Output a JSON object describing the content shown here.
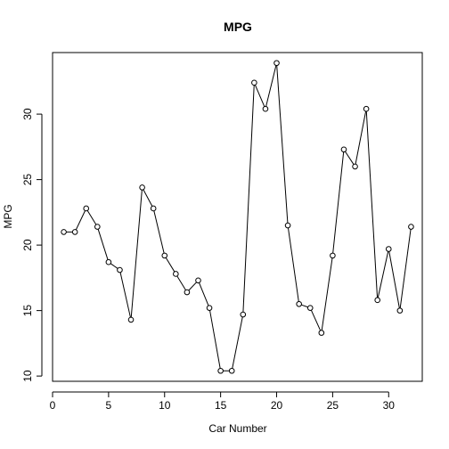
{
  "chart_data": {
    "type": "line",
    "title": "MPG",
    "xlabel": "Car Number",
    "ylabel": "MPG",
    "xlim": [
      0,
      33
    ],
    "ylim": [
      9.6,
      34.7
    ],
    "xticks": [
      0,
      5,
      10,
      15,
      20,
      25,
      30
    ],
    "yticks": [
      10,
      15,
      20,
      25,
      30
    ],
    "grid": false,
    "marker": "open-circle",
    "series": [
      {
        "name": "",
        "x": [
          1,
          2,
          3,
          4,
          5,
          6,
          7,
          8,
          9,
          10,
          11,
          12,
          13,
          14,
          15,
          16,
          17,
          18,
          19,
          20,
          21,
          22,
          23,
          24,
          25,
          26,
          27,
          28,
          29,
          30,
          31,
          32
        ],
        "values": [
          21.0,
          21.0,
          22.8,
          21.4,
          18.7,
          18.1,
          14.3,
          24.4,
          22.8,
          19.2,
          17.8,
          16.4,
          17.3,
          15.2,
          10.4,
          10.4,
          14.7,
          32.4,
          30.4,
          33.9,
          21.5,
          15.5,
          15.2,
          13.3,
          19.2,
          27.3,
          26.0,
          30.4,
          15.8,
          19.7,
          15.0,
          21.4
        ]
      }
    ]
  }
}
